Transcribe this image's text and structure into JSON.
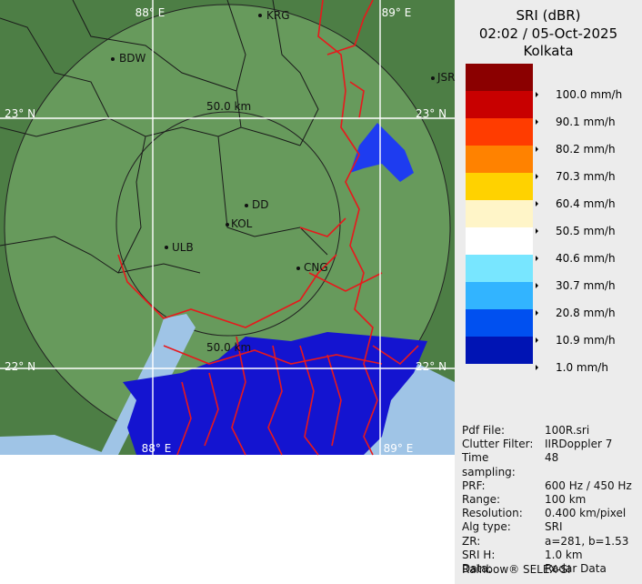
{
  "header": {
    "title": "SRI (dBR)",
    "time": "02:02 / 05-Oct-2025",
    "location": "Kolkata"
  },
  "legend": {
    "colors": [
      "#8b0000",
      "#c80000",
      "#ff3c00",
      "#ff8200",
      "#ffd200",
      "#fff5c8",
      "#ffffff",
      "#78e6ff",
      "#32b4ff",
      "#0050f0",
      "#0014b4",
      "#ececec"
    ],
    "labels": [
      "100.0 mm/h",
      "90.1 mm/h",
      "80.2 mm/h",
      "70.3 mm/h",
      "60.4 mm/h",
      "50.5 mm/h",
      "40.6 mm/h",
      "30.7 mm/h",
      "20.8 mm/h",
      "10.9 mm/h",
      "1.0 mm/h"
    ]
  },
  "map": {
    "labels": [
      "88° E",
      "89° E",
      "23° N",
      "23° N",
      "22° N",
      "22° N",
      "88° E",
      "89° E",
      "KRG",
      "BDW",
      "JSR",
      "DD",
      "KOL",
      "ULB",
      "CNG",
      "50.0 km",
      "50.0 km"
    ]
  },
  "info": {
    "rows": [
      [
        "Pdf File:",
        "100R.sri"
      ],
      [
        "Clutter Filter:",
        "IIRDoppler 7"
      ],
      [
        "Time sampling:",
        "48"
      ],
      [
        "PRF:",
        "600 Hz / 450 Hz"
      ],
      [
        "Range:",
        "100 km"
      ],
      [
        "Resolution:",
        "0.400 km/pixel"
      ],
      [
        "Alg type:",
        "SRI"
      ],
      [
        "ZR:",
        "a=281, b=1.53"
      ],
      [
        "SRI H:",
        "1.0 km"
      ],
      [
        "Data:",
        "Radar Data"
      ]
    ],
    "footer": "Rainbow® SELEX-SI"
  }
}
